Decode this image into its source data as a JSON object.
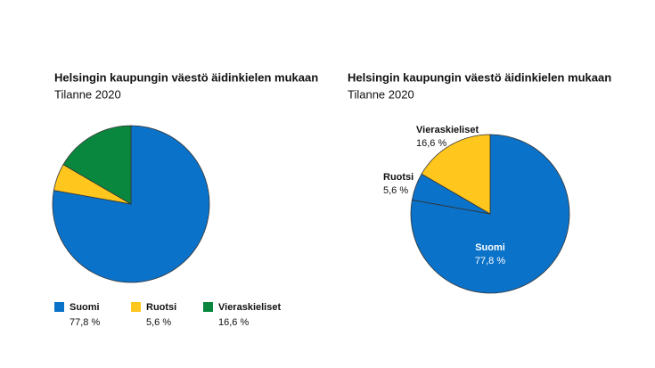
{
  "chart_data": [
    {
      "type": "pie",
      "title": "Helsingin kaupungin väestö äidinkielen mukaan",
      "subtitle": "Tilanne 2020",
      "categories": [
        "Suomi",
        "Ruotsi",
        "Vieraskieliset"
      ],
      "values": [
        77.8,
        5.6,
        16.6
      ],
      "value_labels": [
        "77,8 %",
        "5,6 %",
        "16,6 %"
      ],
      "colors": [
        "#0b72c9",
        "#ffc61e",
        "#0a873e"
      ],
      "legend": "bottom"
    },
    {
      "type": "pie",
      "title": "Helsingin kaupungin väestö äidinkielen mukaan",
      "subtitle": "Tilanne 2020",
      "categories": [
        "Suomi",
        "Ruotsi",
        "Vieraskieliset"
      ],
      "values": [
        77.8,
        5.6,
        16.6
      ],
      "value_labels": [
        "77,8 %",
        "5,6 %",
        "16,6 %"
      ],
      "colors": [
        "#0b72c9",
        "#0b72c9",
        "#ffc61e"
      ],
      "legend": "none"
    }
  ]
}
